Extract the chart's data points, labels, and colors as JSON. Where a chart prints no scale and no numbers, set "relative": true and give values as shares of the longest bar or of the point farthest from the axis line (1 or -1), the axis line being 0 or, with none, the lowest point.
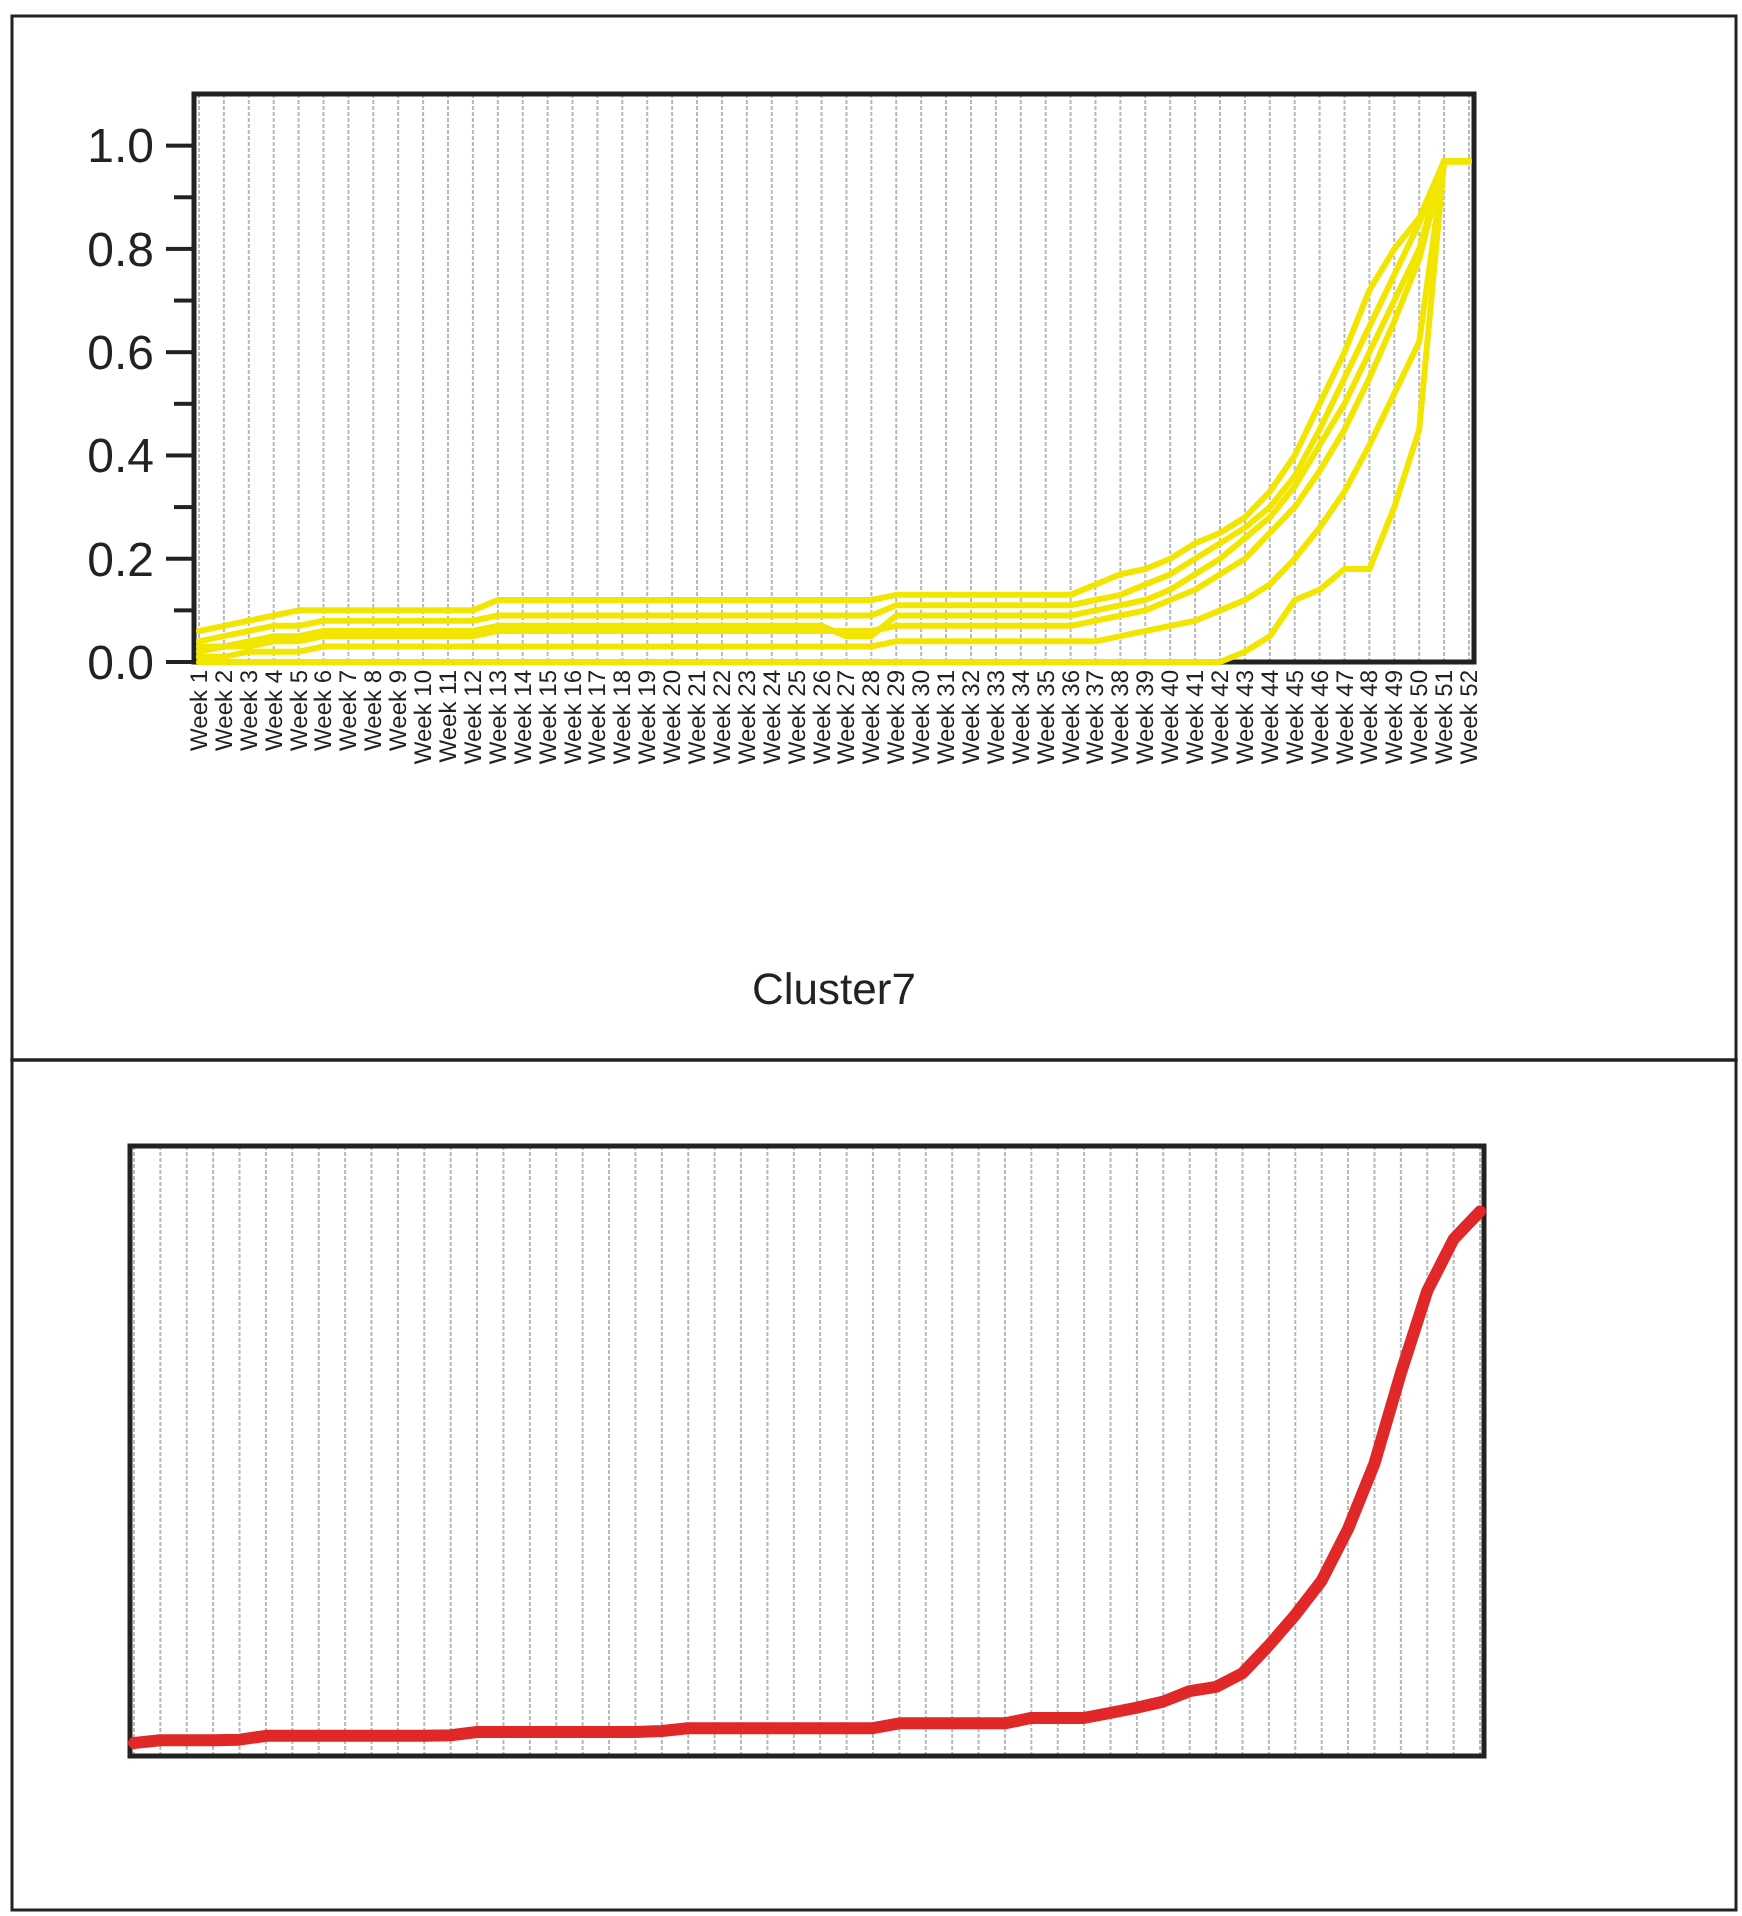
{
  "chart_data": [
    {
      "type": "line",
      "title": "Cluster7",
      "categories": [
        "Week 1",
        "Week 2",
        "Week 3",
        "Week 4",
        "Week 5",
        "Week 6",
        "Week 7",
        "Week 8",
        "Week 9",
        "Week 10",
        "Week 11",
        "Week 12",
        "Week 13",
        "Week 14",
        "Week 15",
        "Week 16",
        "Week 17",
        "Week 18",
        "Week 19",
        "Week 20",
        "Week 21",
        "Week 22",
        "Week 23",
        "Week 24",
        "Week 25",
        "Week 26",
        "Week 27",
        "Week 28",
        "Week 29",
        "Week 30",
        "Week 31",
        "Week 32",
        "Week 33",
        "Week 34",
        "Week 35",
        "Week 36",
        "Week 37",
        "Week 38",
        "Week 39",
        "Week 40",
        "Week 41",
        "Week 42",
        "Week 43",
        "Week 44",
        "Week 45",
        "Week 46",
        "Week 47",
        "Week 48",
        "Week 49",
        "Week 50",
        "Week 51",
        "Week 52"
      ],
      "series": [
        {
          "color": "#f2e600",
          "values": [
            0.06,
            0.07,
            0.08,
            0.09,
            0.1,
            0.1,
            0.1,
            0.1,
            0.1,
            0.1,
            0.1,
            0.1,
            0.12,
            0.12,
            0.12,
            0.12,
            0.12,
            0.12,
            0.12,
            0.12,
            0.12,
            0.12,
            0.12,
            0.12,
            0.12,
            0.12,
            0.12,
            0.12,
            0.13,
            0.13,
            0.13,
            0.13,
            0.13,
            0.13,
            0.13,
            0.13,
            0.15,
            0.17,
            0.18,
            0.2,
            0.23,
            0.25,
            0.28,
            0.33,
            0.4,
            0.5,
            0.6,
            0.72,
            0.8,
            0.86,
            0.97,
            0.97
          ]
        },
        {
          "color": "#f2e600",
          "values": [
            0.04,
            0.05,
            0.06,
            0.07,
            0.07,
            0.08,
            0.08,
            0.08,
            0.08,
            0.08,
            0.08,
            0.08,
            0.09,
            0.09,
            0.09,
            0.09,
            0.09,
            0.09,
            0.09,
            0.09,
            0.09,
            0.09,
            0.09,
            0.09,
            0.09,
            0.09,
            0.09,
            0.09,
            0.11,
            0.11,
            0.11,
            0.11,
            0.11,
            0.11,
            0.11,
            0.11,
            0.12,
            0.13,
            0.15,
            0.17,
            0.2,
            0.23,
            0.26,
            0.3,
            0.36,
            0.45,
            0.55,
            0.65,
            0.75,
            0.85,
            0.97,
            0.97
          ]
        },
        {
          "color": "#f2e600",
          "values": [
            0.02,
            0.03,
            0.03,
            0.04,
            0.04,
            0.05,
            0.05,
            0.05,
            0.05,
            0.05,
            0.05,
            0.05,
            0.06,
            0.06,
            0.06,
            0.06,
            0.06,
            0.06,
            0.06,
            0.06,
            0.06,
            0.06,
            0.06,
            0.06,
            0.06,
            0.06,
            0.06,
            0.06,
            0.07,
            0.07,
            0.07,
            0.07,
            0.07,
            0.07,
            0.07,
            0.07,
            0.08,
            0.09,
            0.1,
            0.12,
            0.14,
            0.17,
            0.2,
            0.25,
            0.3,
            0.37,
            0.45,
            0.55,
            0.66,
            0.78,
            0.97,
            0.97
          ]
        },
        {
          "color": "#f2e600",
          "values": [
            0.01,
            0.01,
            0.02,
            0.02,
            0.02,
            0.03,
            0.03,
            0.03,
            0.03,
            0.03,
            0.03,
            0.03,
            0.03,
            0.03,
            0.03,
            0.03,
            0.03,
            0.03,
            0.03,
            0.03,
            0.03,
            0.03,
            0.03,
            0.03,
            0.03,
            0.03,
            0.03,
            0.03,
            0.04,
            0.04,
            0.04,
            0.04,
            0.04,
            0.04,
            0.04,
            0.04,
            0.04,
            0.05,
            0.06,
            0.07,
            0.08,
            0.1,
            0.12,
            0.15,
            0.2,
            0.26,
            0.33,
            0.42,
            0.52,
            0.62,
            0.97,
            0.97
          ]
        },
        {
          "color": "#f2e600",
          "values": [
            0,
            0,
            0,
            0,
            0,
            0,
            0,
            0,
            0,
            0,
            0,
            0,
            0,
            0,
            0,
            0,
            0,
            0,
            0,
            0,
            0,
            0,
            0,
            0,
            0,
            0,
            0,
            0,
            0,
            0,
            0,
            0,
            0,
            0,
            0,
            0,
            0,
            0,
            0,
            0,
            0,
            0,
            0.02,
            0.05,
            0.12,
            0.14,
            0.18,
            0.18,
            0.3,
            0.45,
            0.97,
            0.97
          ]
        },
        {
          "color": "#f2e600",
          "values": [
            0.03,
            0.03,
            0.04,
            0.05,
            0.05,
            0.06,
            0.06,
            0.06,
            0.06,
            0.06,
            0.06,
            0.06,
            0.07,
            0.07,
            0.07,
            0.07,
            0.07,
            0.07,
            0.07,
            0.07,
            0.07,
            0.07,
            0.07,
            0.07,
            0.07,
            0.07,
            0.05,
            0.05,
            0.09,
            0.09,
            0.09,
            0.09,
            0.09,
            0.09,
            0.09,
            0.09,
            0.1,
            0.11,
            0.12,
            0.14,
            0.17,
            0.2,
            0.24,
            0.28,
            0.34,
            0.42,
            0.5,
            0.6,
            0.7,
            0.8,
            0.97,
            0.97
          ]
        }
      ],
      "ylim": [
        0,
        1.1
      ],
      "yticks": [
        {
          "value": 0,
          "label": "0.0"
        },
        {
          "value": 0.1,
          "label": null
        },
        {
          "value": 0.2,
          "label": "0.2"
        },
        {
          "value": 0.3,
          "label": null
        },
        {
          "value": 0.4,
          "label": "0.4"
        },
        {
          "value": 0.5,
          "label": null
        },
        {
          "value": 0.6,
          "label": "0.6"
        },
        {
          "value": 0.7,
          "label": null
        },
        {
          "value": 0.8,
          "label": "0.8"
        },
        {
          "value": 0.9,
          "label": null
        },
        {
          "value": 1.0,
          "label": "1.0"
        }
      ],
      "grid": "x"
    },
    {
      "type": "line",
      "relative": true,
      "grid": "x",
      "categories": [
        null,
        null,
        null,
        null,
        null,
        null,
        null,
        null,
        null,
        null,
        null,
        null,
        null,
        null,
        null,
        null,
        null,
        null,
        null,
        null,
        null,
        null,
        null,
        null,
        null,
        null,
        null,
        null,
        null,
        null,
        null,
        null,
        null,
        null,
        null,
        null,
        null,
        null,
        null,
        null,
        null,
        null,
        null,
        null,
        null,
        null,
        null,
        null,
        null,
        null,
        null,
        null
      ],
      "series": [
        {
          "color": "#e02828",
          "values": [
            0.024,
            0.029,
            0.029,
            0.029,
            0.03,
            0.037,
            0.037,
            0.037,
            0.037,
            0.037,
            0.037,
            0.037,
            0.038,
            0.044,
            0.044,
            0.044,
            0.044,
            0.044,
            0.044,
            0.044,
            0.046,
            0.051,
            0.051,
            0.051,
            0.051,
            0.051,
            0.051,
            0.051,
            0.051,
            0.06,
            0.06,
            0.06,
            0.06,
            0.06,
            0.07,
            0.07,
            0.07,
            0.079,
            0.089,
            0.1,
            0.119,
            0.127,
            0.152,
            0.203,
            0.259,
            0.322,
            0.417,
            0.537,
            0.703,
            0.854,
            0.949,
            1
          ]
        }
      ]
    }
  ]
}
